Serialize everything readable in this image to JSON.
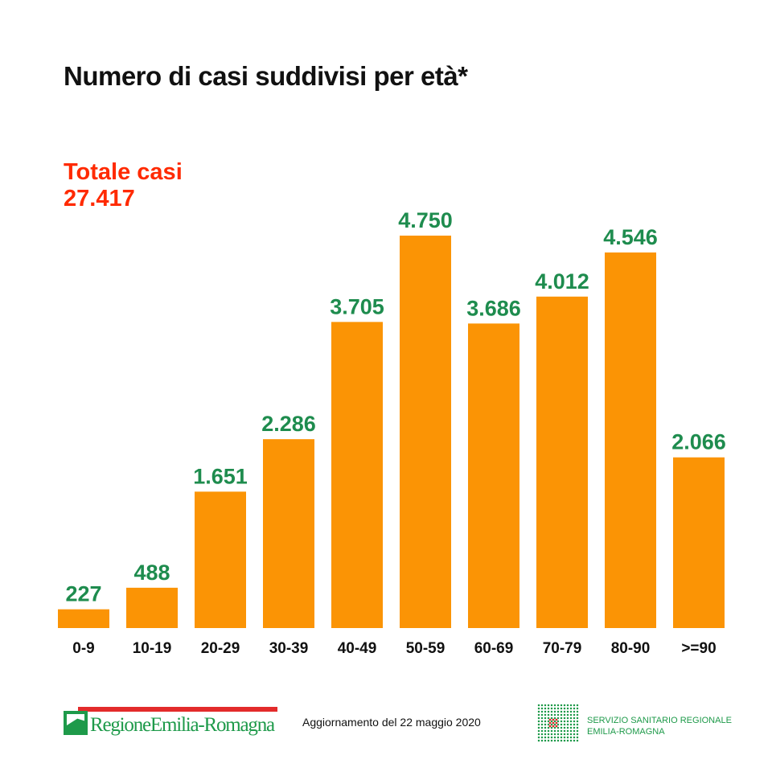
{
  "title": "Numero di casi suddivisi per età*",
  "total": {
    "label": "Totale casi",
    "value": "27.417"
  },
  "chart_data": {
    "type": "bar",
    "title": "Numero di casi suddivisi per età*",
    "categories": [
      "0-9",
      "10-19",
      "20-29",
      "30-39",
      "40-49",
      "50-59",
      "60-69",
      "70-79",
      "80-90",
      ">=90"
    ],
    "values": [
      227,
      488,
      1651,
      2286,
      3705,
      4750,
      3686,
      4012,
      4546,
      2066
    ],
    "value_labels": [
      "227",
      "488",
      "1.651",
      "2.286",
      "3.705",
      "4.750",
      "3.686",
      "4.012",
      "4.546",
      "2.066"
    ],
    "xlabel": "",
    "ylabel": "",
    "ylim": [
      0,
      4750
    ],
    "grid": false,
    "colors": {
      "bar": "#fb9405",
      "label": "#1e8c4e"
    }
  },
  "footer": {
    "region_logo": "RegioneEmilia-Romagna",
    "update": "Aggiornamento del 22 maggio 2020",
    "ssr_line1": "SERVIZIO SANITARIO REGIONALE",
    "ssr_line2": "EMILIA-ROMAGNA"
  }
}
